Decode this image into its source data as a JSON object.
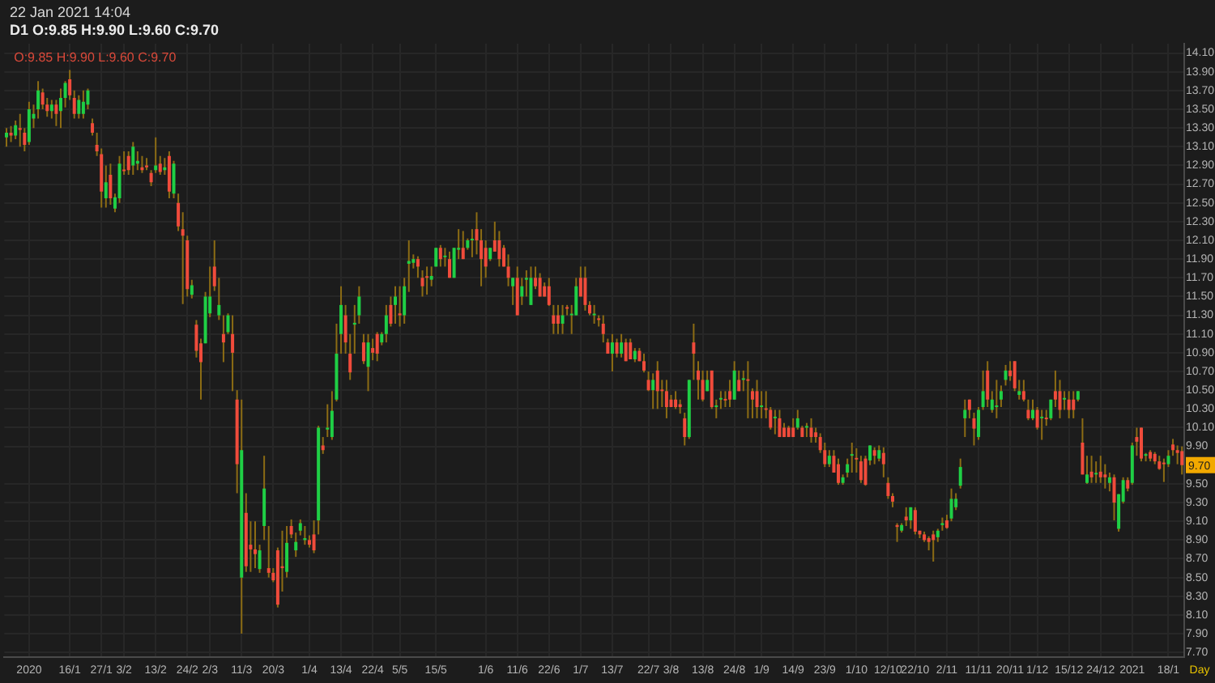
{
  "chart_data": {
    "type": "candlestick",
    "title": "22 Jan 2021 14:04",
    "subtitle": "D1 O:9.85 H:9.90 L:9.60 C:9.70",
    "categories": [
      null,
      null,
      null,
      null,
      null,
      "2020",
      null,
      null,
      null,
      null,
      null,
      null,
      null,
      null,
      "16/1",
      null,
      null,
      null,
      null,
      null,
      null,
      "27/1",
      null,
      null,
      null,
      null,
      "3/2",
      null,
      null,
      null,
      null,
      null,
      null,
      "13/2",
      null,
      null,
      null,
      null,
      null,
      null,
      "24/2",
      null,
      null,
      null,
      null,
      "2/3",
      null,
      null,
      null,
      null,
      null,
      null,
      "11/3",
      null,
      null,
      null,
      null,
      null,
      null,
      "20/3",
      null,
      null,
      null,
      null,
      null,
      null,
      null,
      "1/4",
      null,
      null,
      null,
      null,
      null,
      null,
      "13/4",
      null,
      null,
      null,
      null,
      null,
      null,
      "22/4",
      null,
      null,
      null,
      null,
      null,
      "5/5",
      null,
      null,
      null,
      null,
      null,
      null,
      null,
      "15/5",
      null,
      null,
      null,
      null,
      null,
      null,
      null,
      null,
      null,
      null,
      "1/6",
      null,
      null,
      null,
      null,
      null,
      null,
      "11/6",
      null,
      null,
      null,
      null,
      null,
      null,
      "22/6",
      null,
      null,
      null,
      null,
      null,
      null,
      "1/7",
      null,
      null,
      null,
      null,
      null,
      null,
      "13/7",
      null,
      null,
      null,
      null,
      null,
      null,
      null,
      "22/7",
      null,
      null,
      null,
      null,
      "3/8",
      null,
      null,
      null,
      null,
      null,
      null,
      "13/8",
      null,
      null,
      null,
      null,
      null,
      null,
      "24/8",
      null,
      null,
      null,
      null,
      null,
      "1/9",
      null,
      null,
      null,
      null,
      null,
      null,
      "14/9",
      null,
      null,
      null,
      null,
      null,
      null,
      "23/9",
      null,
      null,
      null,
      null,
      null,
      null,
      "1/10",
      null,
      null,
      null,
      null,
      null,
      null,
      "12/10",
      null,
      null,
      null,
      null,
      null,
      "22/10",
      null,
      null,
      null,
      null,
      null,
      null,
      "2/11",
      null,
      null,
      null,
      null,
      null,
      null,
      "11/11",
      null,
      null,
      null,
      null,
      null,
      null,
      "20/11",
      null,
      null,
      null,
      null,
      null,
      "1/12",
      null,
      null,
      null,
      null,
      null,
      null,
      "15/12",
      null,
      null,
      null,
      null,
      null,
      null,
      "24/12",
      null,
      null,
      null,
      null,
      null,
      null,
      "2021",
      null,
      null,
      null,
      null,
      null,
      null,
      null,
      "18/1",
      null,
      null,
      null
    ],
    "ohlc": [
      [
        13.2,
        13.3,
        13.1,
        13.25
      ],
      [
        13.25,
        13.32,
        13.15,
        13.22
      ],
      [
        13.22,
        13.38,
        13.18,
        13.33
      ],
      [
        13.3,
        13.45,
        13.1,
        13.28
      ],
      [
        13.25,
        13.3,
        13.05,
        13.12
      ],
      [
        13.15,
        13.58,
        13.12,
        13.5
      ],
      [
        13.4,
        13.55,
        13.3,
        13.45
      ],
      [
        13.5,
        13.8,
        13.4,
        13.7
      ],
      [
        13.68,
        13.72,
        13.5,
        13.55
      ],
      [
        13.55,
        13.62,
        13.42,
        13.48
      ],
      [
        13.48,
        13.6,
        13.4,
        13.55
      ],
      [
        13.55,
        13.6,
        13.32,
        13.45
      ],
      [
        13.48,
        13.72,
        13.3,
        13.62
      ],
      [
        13.62,
        13.8,
        13.52,
        13.78
      ],
      [
        13.82,
        13.92,
        13.6,
        13.65
      ],
      [
        13.62,
        13.7,
        13.4,
        13.45
      ],
      [
        13.45,
        13.65,
        13.4,
        13.6
      ],
      [
        13.45,
        13.7,
        13.4,
        13.58
      ],
      [
        13.55,
        13.72,
        13.5,
        13.7
      ],
      [
        13.35,
        13.4,
        13.22,
        13.25
      ],
      [
        13.12,
        13.25,
        13.0,
        13.05
      ],
      [
        13.02,
        13.08,
        12.45,
        12.62
      ],
      [
        12.55,
        12.9,
        12.45,
        12.72
      ],
      [
        12.8,
        12.92,
        12.48,
        12.55
      ],
      [
        12.44,
        12.6,
        12.4,
        12.56
      ],
      [
        12.55,
        13.0,
        12.5,
        12.92
      ],
      [
        12.85,
        13.05,
        12.8,
        12.84
      ],
      [
        13.0,
        13.05,
        12.8,
        12.85
      ],
      [
        12.9,
        13.15,
        12.8,
        13.1
      ],
      [
        12.92,
        13.05,
        12.85,
        12.95
      ],
      [
        12.88,
        13.0,
        12.82,
        12.85
      ],
      [
        12.9,
        12.98,
        12.85,
        12.88
      ],
      [
        12.82,
        12.85,
        12.68,
        12.72
      ],
      [
        12.85,
        13.2,
        12.82,
        12.9
      ],
      [
        12.92,
        13.0,
        12.8,
        12.83
      ],
      [
        12.85,
        12.98,
        12.8,
        12.88
      ],
      [
        13.0,
        13.05,
        12.55,
        12.62
      ],
      [
        12.6,
        12.95,
        12.55,
        12.92
      ],
      [
        12.5,
        12.6,
        12.2,
        12.25
      ],
      [
        12.22,
        12.4,
        11.42,
        12.15
      ],
      [
        12.1,
        12.15,
        11.5,
        11.58
      ],
      [
        11.52,
        11.68,
        11.48,
        11.62
      ],
      [
        11.2,
        11.25,
        10.85,
        10.92
      ],
      [
        11.0,
        11.05,
        10.4,
        10.8
      ],
      [
        11.0,
        11.55,
        11.0,
        11.5
      ],
      [
        11.32,
        11.82,
        11.28,
        11.5
      ],
      [
        11.82,
        12.1,
        11.56,
        11.61
      ],
      [
        11.3,
        11.7,
        11.25,
        11.41
      ],
      [
        11.1,
        11.3,
        10.8,
        11.01
      ],
      [
        11.12,
        11.32,
        11.1,
        11.3
      ],
      [
        11.1,
        11.3,
        10.49,
        10.9
      ],
      [
        10.4,
        10.5,
        9.4,
        9.71
      ],
      [
        8.5,
        10.4,
        7.9,
        9.86
      ],
      [
        9.19,
        9.4,
        8.56,
        8.62
      ],
      [
        8.85,
        9.1,
        8.56,
        8.8
      ],
      [
        8.8,
        9.1,
        8.6,
        8.75
      ],
      [
        8.59,
        8.85,
        8.55,
        8.79
      ],
      [
        9.05,
        9.8,
        8.9,
        9.45
      ],
      [
        8.6,
        9.05,
        8.5,
        8.55
      ],
      [
        8.55,
        8.6,
        8.45,
        8.47
      ],
      [
        8.79,
        8.82,
        8.18,
        8.21
      ],
      [
        8.62,
        9.0,
        8.35,
        8.6
      ],
      [
        8.56,
        9.05,
        8.5,
        8.87
      ],
      [
        9.05,
        9.12,
        8.92,
        8.96
      ],
      [
        8.79,
        8.98,
        8.72,
        8.88
      ],
      [
        9.0,
        9.12,
        8.95,
        9.08
      ],
      [
        8.9,
        9.05,
        8.85,
        8.92
      ],
      [
        8.9,
        8.95,
        8.82,
        8.85
      ],
      [
        8.96,
        9.11,
        8.76,
        8.79
      ],
      [
        9.11,
        10.12,
        8.96,
        10.1
      ],
      [
        9.91,
        10.0,
        9.82,
        9.86
      ],
      [
        10.08,
        10.35,
        10.0,
        10.1
      ],
      [
        10.0,
        10.49,
        9.97,
        10.28
      ],
      [
        10.4,
        11.21,
        10.38,
        10.89
      ],
      [
        11.1,
        11.61,
        10.89,
        11.41
      ],
      [
        11.3,
        11.41,
        10.89,
        11.01
      ],
      [
        10.89,
        11.1,
        10.61,
        10.69
      ],
      [
        11.2,
        11.41,
        10.89,
        11.22
      ],
      [
        11.3,
        11.61,
        11.21,
        11.5
      ],
      [
        11.01,
        11.1,
        10.78,
        10.81
      ],
      [
        10.75,
        11.1,
        10.49,
        11.01
      ],
      [
        10.95,
        11.05,
        10.82,
        10.9
      ],
      [
        11.1,
        11.12,
        10.81,
        10.89
      ],
      [
        11.01,
        11.12,
        10.98,
        11.1
      ],
      [
        11.1,
        11.41,
        11.01,
        11.3
      ],
      [
        11.41,
        11.5,
        11.18,
        11.21
      ],
      [
        11.41,
        11.61,
        11.21,
        11.5
      ],
      [
        11.32,
        11.61,
        11.18,
        11.3
      ],
      [
        11.3,
        11.7,
        11.21,
        11.61
      ],
      [
        11.85,
        12.1,
        11.55,
        11.88
      ],
      [
        11.86,
        11.95,
        11.8,
        11.9
      ],
      [
        11.9,
        11.93,
        11.7,
        11.82
      ],
      [
        11.7,
        11.78,
        11.5,
        11.61
      ],
      [
        11.71,
        11.82,
        11.52,
        11.7
      ],
      [
        11.68,
        11.82,
        11.61,
        11.72
      ],
      [
        11.82,
        12.02,
        11.82,
        12.02
      ],
      [
        12.02,
        12.05,
        11.82,
        11.9
      ],
      [
        11.92,
        12.02,
        11.82,
        11.93
      ],
      [
        11.9,
        11.98,
        11.7,
        11.7
      ],
      [
        11.7,
        12.02,
        11.7,
        12.02
      ],
      [
        12.0,
        12.22,
        11.9,
        12.02
      ],
      [
        12.02,
        12.2,
        11.9,
        11.9
      ],
      [
        12.02,
        12.12,
        12.0,
        12.1
      ],
      [
        12.1,
        12.22,
        11.92,
        12.11
      ],
      [
        12.22,
        12.4,
        11.95,
        12.1
      ],
      [
        12.1,
        12.22,
        11.61,
        11.9
      ],
      [
        12.02,
        12.1,
        11.7,
        11.82
      ],
      [
        11.9,
        12.02,
        11.88,
        12.02
      ],
      [
        12.1,
        12.3,
        11.98,
        11.98
      ],
      [
        12.1,
        12.2,
        11.82,
        11.9
      ],
      [
        12.02,
        12.05,
        11.82,
        11.82
      ],
      [
        11.82,
        11.95,
        11.61,
        11.7
      ],
      [
        11.61,
        11.7,
        11.41,
        11.7
      ],
      [
        11.7,
        11.82,
        11.3,
        11.3
      ],
      [
        11.5,
        11.7,
        11.41,
        11.61
      ],
      [
        11.68,
        11.78,
        11.5,
        11.7
      ],
      [
        11.41,
        11.82,
        11.41,
        11.7
      ],
      [
        11.7,
        11.82,
        11.58,
        11.61
      ],
      [
        11.7,
        11.75,
        11.5,
        11.5
      ],
      [
        11.61,
        11.65,
        11.5,
        11.5
      ],
      [
        11.61,
        11.7,
        11.4,
        11.41
      ],
      [
        11.3,
        11.41,
        11.1,
        11.21
      ],
      [
        11.3,
        11.41,
        11.1,
        11.21
      ],
      [
        11.21,
        11.41,
        11.1,
        11.3
      ],
      [
        11.38,
        11.41,
        11.3,
        11.37
      ],
      [
        11.3,
        11.41,
        11.1,
        11.31
      ],
      [
        11.3,
        11.7,
        11.3,
        11.61
      ],
      [
        11.7,
        11.82,
        11.5,
        11.5
      ],
      [
        11.7,
        11.82,
        11.35,
        11.41
      ],
      [
        11.41,
        11.45,
        11.3,
        11.32
      ],
      [
        11.3,
        11.41,
        11.21,
        11.31
      ],
      [
        11.26,
        11.3,
        11.18,
        11.25
      ],
      [
        11.21,
        11.3,
        11.01,
        11.1
      ],
      [
        11.01,
        11.05,
        10.89,
        10.89
      ],
      [
        10.89,
        11.1,
        10.7,
        11.01
      ],
      [
        11.01,
        11.05,
        10.85,
        10.89
      ],
      [
        10.89,
        11.1,
        10.85,
        11.01
      ],
      [
        11.01,
        11.05,
        10.81,
        10.81
      ],
      [
        11.01,
        11.05,
        10.83,
        10.83
      ],
      [
        10.83,
        10.95,
        10.8,
        10.92
      ],
      [
        10.92,
        10.95,
        10.81,
        10.81
      ],
      [
        10.81,
        10.89,
        10.69,
        10.71
      ],
      [
        10.61,
        10.7,
        10.49,
        10.5
      ],
      [
        10.5,
        10.68,
        10.3,
        10.61
      ],
      [
        10.71,
        10.81,
        10.3,
        10.49
      ],
      [
        10.5,
        10.61,
        10.32,
        10.49
      ],
      [
        10.49,
        10.61,
        10.2,
        10.32
      ],
      [
        10.4,
        10.45,
        10.32,
        10.32
      ],
      [
        10.4,
        10.49,
        10.3,
        10.32
      ],
      [
        10.35,
        10.4,
        10.25,
        10.32
      ],
      [
        10.2,
        10.26,
        9.91,
        10.0
      ],
      [
        10.0,
        10.61,
        9.98,
        10.61
      ],
      [
        11.01,
        11.21,
        10.61,
        10.89
      ],
      [
        10.71,
        10.81,
        10.4,
        10.61
      ],
      [
        10.61,
        10.71,
        10.38,
        10.4
      ],
      [
        10.49,
        10.71,
        10.49,
        10.61
      ],
      [
        10.71,
        10.71,
        10.3,
        10.32
      ],
      [
        10.32,
        10.4,
        10.2,
        10.33
      ],
      [
        10.4,
        10.49,
        10.3,
        10.41
      ],
      [
        10.4,
        10.49,
        10.32,
        10.39
      ],
      [
        10.49,
        10.61,
        10.32,
        10.4
      ],
      [
        10.4,
        10.81,
        10.4,
        10.71
      ],
      [
        10.61,
        10.71,
        10.49,
        10.49
      ],
      [
        10.61,
        10.71,
        10.49,
        10.62
      ],
      [
        10.61,
        10.81,
        10.2,
        10.6
      ],
      [
        10.49,
        10.52,
        10.2,
        10.4
      ],
      [
        10.49,
        10.61,
        10.2,
        10.32
      ],
      [
        10.32,
        10.49,
        10.2,
        10.33
      ],
      [
        10.3,
        10.49,
        10.2,
        10.29
      ],
      [
        10.29,
        10.32,
        10.08,
        10.1
      ],
      [
        10.2,
        10.29,
        10.03,
        10.21
      ],
      [
        10.2,
        10.29,
        10.0,
        10.0
      ],
      [
        10.1,
        10.15,
        10.0,
        10.0
      ],
      [
        10.1,
        10.12,
        10.0,
        10.0
      ],
      [
        10.1,
        10.2,
        10.0,
        10.0
      ],
      [
        10.1,
        10.29,
        10.08,
        10.2
      ],
      [
        10.1,
        10.12,
        10.0,
        10.0
      ],
      [
        10.1,
        10.15,
        10.0,
        10.11
      ],
      [
        10.1,
        10.2,
        9.94,
        10.0
      ],
      [
        10.05,
        10.1,
        9.94,
        10.0
      ],
      [
        10.0,
        10.04,
        9.83,
        9.86
      ],
      [
        9.86,
        9.94,
        9.68,
        9.71
      ],
      [
        9.71,
        9.86,
        9.68,
        9.8
      ],
      [
        9.8,
        9.86,
        9.62,
        9.62
      ],
      [
        9.71,
        9.77,
        9.49,
        9.51
      ],
      [
        9.51,
        9.6,
        9.49,
        9.57
      ],
      [
        9.62,
        9.77,
        9.57,
        9.71
      ],
      [
        9.8,
        9.94,
        9.62,
        9.81
      ],
      [
        9.77,
        9.88,
        9.62,
        9.76
      ],
      [
        9.74,
        9.8,
        9.51,
        9.54
      ],
      [
        9.77,
        9.8,
        9.48,
        9.49
      ],
      [
        9.75,
        9.91,
        9.7,
        9.91
      ],
      [
        9.86,
        9.89,
        9.71,
        9.8
      ],
      [
        9.77,
        9.91,
        9.74,
        9.86
      ],
      [
        9.83,
        9.89,
        9.57,
        9.71
      ],
      [
        9.51,
        9.57,
        9.34,
        9.37
      ],
      [
        9.37,
        9.4,
        9.25,
        9.31
      ],
      [
        9.06,
        9.08,
        8.88,
        9.04
      ],
      [
        9.0,
        9.08,
        8.98,
        9.06
      ],
      [
        9.15,
        9.25,
        9.05,
        9.11
      ],
      [
        9.11,
        9.25,
        9.02,
        9.25
      ],
      [
        9.22,
        9.25,
        8.96,
        8.99
      ],
      [
        9.0,
        9.0,
        8.92,
        8.96
      ],
      [
        8.96,
        8.99,
        8.88,
        8.9
      ],
      [
        8.92,
        8.94,
        8.79,
        8.88
      ],
      [
        8.96,
        9.0,
        8.67,
        8.9
      ],
      [
        8.93,
        9.02,
        8.88,
        9.0
      ],
      [
        9.06,
        9.14,
        9.0,
        9.08
      ],
      [
        9.11,
        9.17,
        9.02,
        9.03
      ],
      [
        9.13,
        9.45,
        9.1,
        9.34
      ],
      [
        9.25,
        9.4,
        9.22,
        9.34
      ],
      [
        9.48,
        9.77,
        9.45,
        9.68
      ],
      [
        10.2,
        10.4,
        10.0,
        10.29
      ],
      [
        10.4,
        10.4,
        10.2,
        10.29
      ],
      [
        10.2,
        10.26,
        9.91,
        10.09
      ],
      [
        10.0,
        10.32,
        9.97,
        10.29
      ],
      [
        10.32,
        10.71,
        10.29,
        10.49
      ],
      [
        10.71,
        10.81,
        10.32,
        10.4
      ],
      [
        10.29,
        10.49,
        10.26,
        10.4
      ],
      [
        10.32,
        10.61,
        10.2,
        10.33
      ],
      [
        10.4,
        10.55,
        10.32,
        10.49
      ],
      [
        10.61,
        10.77,
        10.55,
        10.71
      ],
      [
        10.71,
        10.81,
        10.6,
        10.65
      ],
      [
        10.81,
        10.81,
        10.49,
        10.52
      ],
      [
        10.45,
        10.61,
        10.4,
        10.49
      ],
      [
        10.49,
        10.61,
        10.38,
        10.4
      ],
      [
        10.29,
        10.4,
        10.18,
        10.2
      ],
      [
        10.2,
        10.4,
        10.18,
        10.29
      ],
      [
        10.29,
        10.32,
        10.08,
        10.1
      ],
      [
        10.2,
        10.29,
        9.97,
        10.21
      ],
      [
        10.2,
        10.29,
        10.12,
        10.19
      ],
      [
        10.2,
        10.4,
        10.18,
        10.4
      ],
      [
        10.49,
        10.71,
        10.32,
        10.4
      ],
      [
        10.49,
        10.61,
        10.2,
        10.29
      ],
      [
        10.4,
        10.49,
        10.29,
        10.41
      ],
      [
        10.4,
        10.49,
        10.2,
        10.29
      ],
      [
        10.4,
        10.49,
        10.2,
        10.29
      ],
      [
        10.4,
        10.49,
        10.38,
        10.49
      ],
      [
        9.94,
        10.2,
        9.6,
        9.6
      ],
      [
        9.51,
        9.8,
        9.5,
        9.6
      ],
      [
        9.63,
        9.8,
        9.51,
        9.57
      ],
      [
        9.6,
        9.74,
        9.51,
        9.61
      ],
      [
        9.63,
        9.8,
        9.51,
        9.57
      ],
      [
        9.6,
        9.71,
        9.45,
        9.57
      ],
      [
        9.51,
        9.62,
        9.42,
        9.57
      ],
      [
        9.57,
        9.6,
        9.11,
        9.3
      ],
      [
        9.02,
        9.39,
        8.99,
        9.39
      ],
      [
        9.31,
        9.57,
        9.29,
        9.54
      ],
      [
        9.54,
        9.57,
        9.42,
        9.45
      ],
      [
        9.51,
        9.94,
        9.49,
        9.91
      ],
      [
        10.0,
        10.1,
        9.8,
        9.95
      ],
      [
        10.1,
        10.1,
        9.74,
        9.77
      ],
      [
        9.8,
        9.83,
        9.74,
        9.81
      ],
      [
        9.84,
        9.86,
        9.74,
        9.77
      ],
      [
        9.82,
        9.84,
        9.71,
        9.74
      ],
      [
        9.74,
        9.8,
        9.65,
        9.66
      ],
      [
        9.72,
        9.77,
        9.52,
        9.71
      ],
      [
        9.71,
        9.86,
        9.68,
        9.8
      ],
      [
        9.92,
        9.98,
        9.8,
        9.86
      ],
      [
        9.86,
        9.91,
        9.71,
        9.83
      ],
      [
        9.85,
        9.9,
        9.6,
        9.7
      ]
    ],
    "colors": [
      "#1fcf45",
      "#f04b3b",
      "#1fcf45",
      "#f04b3b",
      "#f04b3b",
      "#1fcf45",
      "#1fcf45",
      "#1fcf45",
      "#f04b3b",
      "#f04b3b",
      "#1fcf45",
      "#f04b3b",
      "#1fcf45",
      "#1fcf45",
      "#f04b3b",
      "#f04b3b",
      "#1fcf45",
      "#1fcf45",
      "#1fcf45",
      "#f04b3b",
      "#f04b3b",
      "#f04b3b",
      "#1fcf45",
      "#f04b3b",
      "#1fcf45",
      "#1fcf45",
      "#f04b3b",
      "#f04b3b",
      "#1fcf45",
      "#1fcf45",
      "#f04b3b",
      "#f04b3b",
      "#f04b3b",
      "#1fcf45",
      "#f04b3b",
      "#1fcf45",
      "#f04b3b",
      "#1fcf45",
      "#f04b3b",
      "#f04b3b",
      "#f04b3b",
      "#1fcf45",
      "#f04b3b",
      "#f04b3b",
      "#1fcf45",
      "#1fcf45",
      "#f04b3b",
      "#1fcf45",
      "#f04b3b",
      "#1fcf45",
      "#f04b3b",
      "#f04b3b",
      "#1fcf45",
      "#f04b3b",
      "#f04b3b",
      "#f04b3b",
      "#1fcf45",
      "#1fcf45",
      "#f04b3b",
      "#f04b3b",
      "#f04b3b",
      "#f04b3b",
      "#1fcf45",
      "#f04b3b",
      "#1fcf45",
      "#1fcf45",
      "#1fcf45",
      "#f04b3b",
      "#f04b3b",
      "#1fcf45",
      "#f04b3b",
      "#1fcf45",
      "#1fcf45",
      "#1fcf45",
      "#1fcf45",
      "#f04b3b",
      "#f04b3b",
      "#1fcf45",
      "#1fcf45",
      "#f04b3b",
      "#1fcf45",
      "#f04b3b",
      "#f04b3b",
      "#1fcf45",
      "#1fcf45",
      "#f04b3b",
      "#1fcf45",
      "#f04b3b",
      "#1fcf45",
      "#1fcf45",
      "#1fcf45",
      "#f04b3b",
      "#f04b3b",
      "#f04b3b",
      "#1fcf45",
      "#1fcf45",
      "#f04b3b",
      "#1fcf45",
      "#f04b3b",
      "#1fcf45",
      "#1fcf45",
      "#f04b3b",
      "#1fcf45",
      "#1fcf45",
      "#f04b3b",
      "#f04b3b",
      "#f04b3b",
      "#1fcf45",
      "#f04b3b",
      "#f04b3b",
      "#f04b3b",
      "#f04b3b",
      "#1fcf45",
      "#f04b3b",
      "#1fcf45",
      "#1fcf45",
      "#1fcf45",
      "#f04b3b",
      "#f04b3b",
      "#f04b3b",
      "#f04b3b",
      "#f04b3b",
      "#f04b3b",
      "#1fcf45",
      "#f04b3b",
      "#1fcf45",
      "#1fcf45",
      "#f04b3b",
      "#f04b3b",
      "#f04b3b",
      "#1fcf45",
      "#f04b3b",
      "#f04b3b",
      "#f04b3b",
      "#1fcf45",
      "#f04b3b",
      "#1fcf45",
      "#f04b3b",
      "#f04b3b",
      "#1fcf45",
      "#f04b3b",
      "#f04b3b",
      "#f04b3b",
      "#1fcf45",
      "#f04b3b",
      "#f04b3b",
      "#f04b3b",
      "#f04b3b",
      "#f04b3b",
      "#f04b3b",
      "#f04b3b",
      "#1fcf45",
      "#f04b3b",
      "#f04b3b",
      "#f04b3b",
      "#1fcf45",
      "#f04b3b",
      "#1fcf45",
      "#1fcf45",
      "#f04b3b",
      "#f04b3b",
      "#1fcf45",
      "#f04b3b",
      "#1fcf45",
      "#f04b3b",
      "#f04b3b",
      "#f04b3b",
      "#1fcf45",
      "#f04b3b",
      "#f04b3b",
      "#1fcf45",
      "#f04b3b",
      "#f04b3b",
      "#f04b3b",
      "#f04b3b",
      "#1fcf45",
      "#f04b3b",
      "#1fcf45",
      "#f04b3b",
      "#f04b3b",
      "#f04b3b",
      "#f04b3b",
      "#1fcf45",
      "#f04b3b",
      "#f04b3b",
      "#1fcf45",
      "#1fcf45",
      "#1fcf45",
      "#f04b3b",
      "#f04b3b",
      "#f04b3b",
      "#1fcf45",
      "#f04b3b",
      "#1fcf45",
      "#f04b3b",
      "#f04b3b",
      "#f04b3b",
      "#f04b3b",
      "#1fcf45",
      "#f04b3b",
      "#1fcf45",
      "#f04b3b",
      "#f04b3b",
      "#f04b3b",
      "#f04b3b",
      "#f04b3b",
      "#1fcf45",
      "#1fcf45",
      "#f04b3b",
      "#1fcf45",
      "#1fcf45",
      "#1fcf45",
      "#1fcf45",
      "#f04b3b",
      "#f04b3b",
      "#1fcf45",
      "#1fcf45",
      "#f04b3b",
      "#1fcf45",
      "#1fcf45",
      "#1fcf45",
      "#1fcf45",
      "#f04b3b",
      "#f04b3b",
      "#1fcf45",
      "#f04b3b",
      "#f04b3b",
      "#1fcf45",
      "#f04b3b",
      "#1fcf45",
      "#f04b3b",
      "#1fcf45",
      "#f04b3b",
      "#f04b3b",
      "#1fcf45",
      "#f04b3b",
      "#f04b3b",
      "#1fcf45",
      "#f04b3b",
      "#1fcf45",
      "#f04b3b",
      "#1fcf45",
      "#f04b3b",
      "#f04b3b",
      "#1fcf45",
      "#f04b3b",
      "#1fcf45",
      "#1fcf45",
      "#f04b3b",
      "#1fcf45",
      "#f04b3b",
      "#f04b3b",
      "#1fcf45",
      "#f04b3b",
      "#f04b3b",
      "#f04b3b",
      "#f04b3b",
      "#1fcf45",
      "#f04b3b",
      "#f04b3b",
      "#f04b3b"
    ],
    "color": "#8c6c14",
    "ylim": [
      7.65,
      14.2
    ],
    "yticks": [
      {
        "value": 14.1,
        "label": "14.10"
      },
      {
        "value": 13.9,
        "label": "13.90"
      },
      {
        "value": 13.7,
        "label": "13.70"
      },
      {
        "value": 13.5,
        "label": "13.50"
      },
      {
        "value": 13.3,
        "label": "13.30"
      },
      {
        "value": 13.1,
        "label": "13.10"
      },
      {
        "value": 12.9,
        "label": "12.90"
      },
      {
        "value": 12.7,
        "label": "12.70"
      },
      {
        "value": 12.5,
        "label": "12.50"
      },
      {
        "value": 12.3,
        "label": "12.30"
      },
      {
        "value": 12.1,
        "label": "12.10"
      },
      {
        "value": 11.9,
        "label": "11.90"
      },
      {
        "value": 11.7,
        "label": "11.70"
      },
      {
        "value": 11.5,
        "label": "11.50"
      },
      {
        "value": 11.3,
        "label": "11.30"
      },
      {
        "value": 11.1,
        "label": "11.10"
      },
      {
        "value": 10.9,
        "label": "10.90"
      },
      {
        "value": 10.7,
        "label": "10.70"
      },
      {
        "value": 10.5,
        "label": "10.50"
      },
      {
        "value": 10.3,
        "label": "10.30"
      },
      {
        "value": 10.1,
        "label": "10.10"
      },
      {
        "value": 9.9,
        "label": "9.90"
      },
      {
        "value": 9.5,
        "label": "9.50"
      },
      {
        "value": 9.3,
        "label": "9.30"
      },
      {
        "value": 9.1,
        "label": "9.10"
      },
      {
        "value": 8.9,
        "label": "8.90"
      },
      {
        "value": 8.7,
        "label": "8.70"
      },
      {
        "value": 8.5,
        "label": "8.50"
      },
      {
        "value": 8.3,
        "label": "8.30"
      },
      {
        "value": 8.1,
        "label": "8.10"
      },
      {
        "value": 7.9,
        "label": "7.90"
      },
      {
        "value": 7.7,
        "label": "7.70"
      }
    ],
    "grid": true,
    "annotations": [
      "O:9.85 H:9.90 L:9.60 C:9.70",
      {
        "text": "9.70",
        "y": 9.7
      },
      "Day"
    ]
  }
}
